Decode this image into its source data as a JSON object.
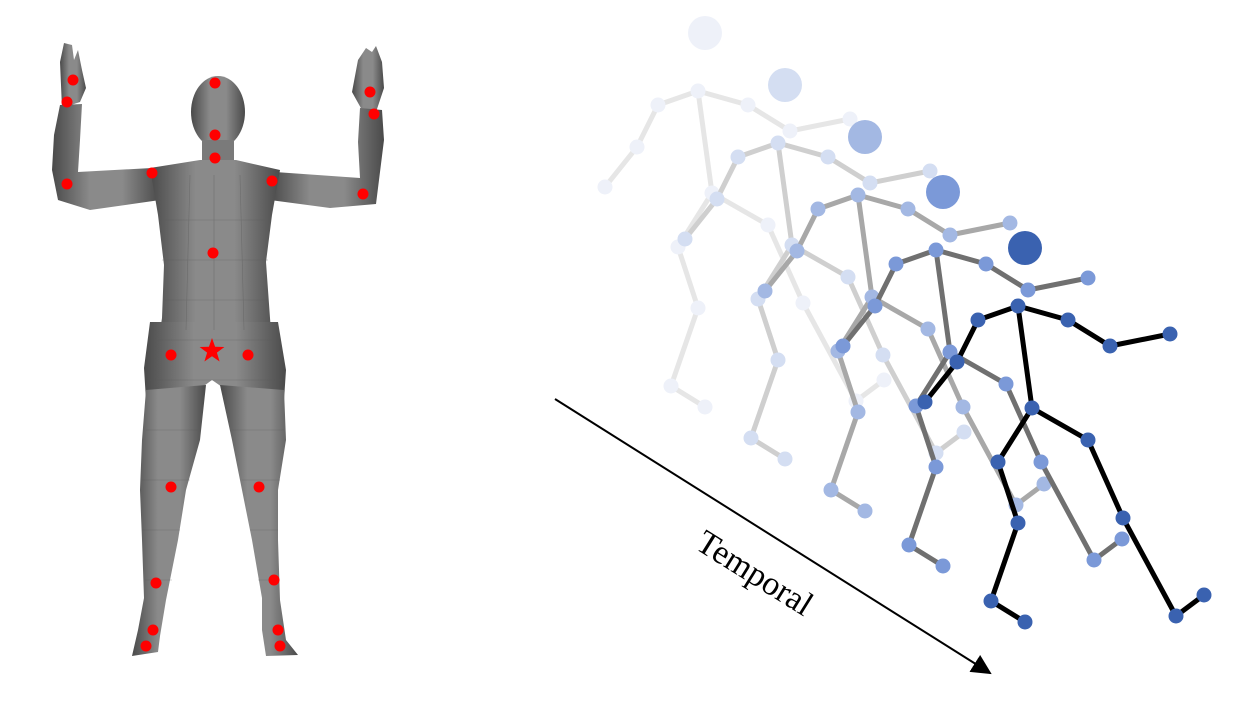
{
  "temporal_axis": {
    "label": "Temporal"
  },
  "joint_marker_color": "#ff0000",
  "root_marker": "star",
  "body_mesh_color": "#6e6e6e",
  "skeleton_frames": [
    {
      "frame": 1,
      "joint_color": "#eef1f9",
      "bone_color": "#e6e6e6"
    },
    {
      "frame": 2,
      "joint_color": "#d4def2",
      "bone_color": "#cfcfcf"
    },
    {
      "frame": 3,
      "joint_color": "#a3b8e3",
      "bone_color": "#a8a8a8"
    },
    {
      "frame": 4,
      "joint_color": "#7b99d8",
      "bone_color": "#707070"
    },
    {
      "frame": 5,
      "joint_color": "#3a62b0",
      "bone_color": "#000000"
    }
  ]
}
